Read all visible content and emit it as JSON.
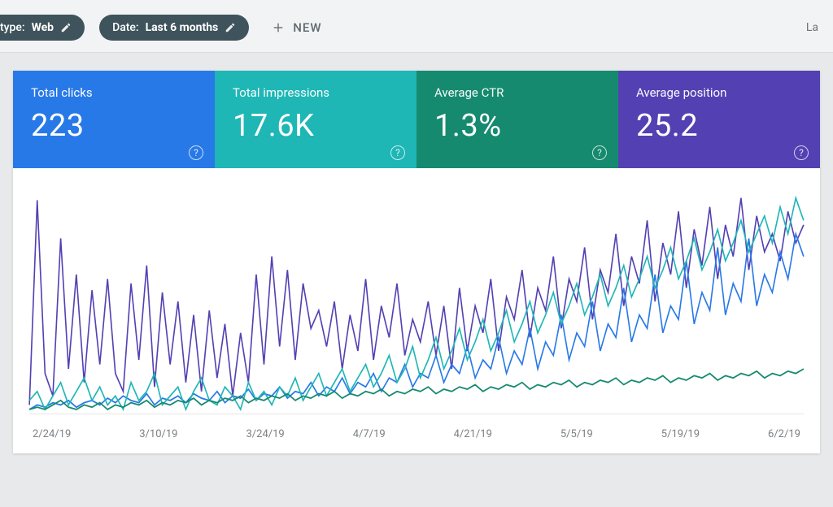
{
  "filters": {
    "type_chip": {
      "prefix": "type:",
      "value": "Web"
    },
    "date_chip": {
      "prefix": "Date:",
      "value": "Last 6 months"
    },
    "new_label": "NEW",
    "right_link": "La"
  },
  "chip_bg": "#3e535b",
  "tabs": [
    {
      "id": "clicks",
      "label": "Total clicks",
      "value": "223",
      "color": "#2879e8"
    },
    {
      "id": "impressions",
      "label": "Total impressions",
      "value": "17.6K",
      "color": "#1fb6b6"
    },
    {
      "id": "ctr",
      "label": "Average CTR",
      "value": "1.3%",
      "color": "#158a6f"
    },
    {
      "id": "position",
      "label": "Average position",
      "value": "25.2",
      "color": "#5341b3"
    }
  ],
  "chart": {
    "type": "line",
    "background": "#ffffff",
    "grid_color": "#e8e9ea",
    "label_color": "#7b8185",
    "label_fontsize": 13,
    "x_categories": [
      "2/24/19",
      "3/10/19",
      "3/24/19",
      "4/7/19",
      "4/21/19",
      "5/5/19",
      "5/19/19",
      "6/2/19"
    ],
    "ylim": [
      0,
      100
    ],
    "line_width": 1.6,
    "series": [
      {
        "id": "position",
        "color": "#5341b3",
        "points": [
          4,
          95,
          18,
          8,
          78,
          20,
          62,
          14,
          55,
          22,
          60,
          18,
          10,
          58,
          24,
          66,
          12,
          54,
          22,
          50,
          14,
          44,
          10,
          46,
          16,
          40,
          8,
          36,
          14,
          62,
          22,
          70,
          30,
          64,
          24,
          58,
          38,
          46,
          30,
          50,
          20,
          44,
          28,
          60,
          24,
          48,
          34,
          58,
          26,
          42,
          32,
          50,
          26,
          48,
          20,
          56,
          28,
          48,
          36,
          60,
          28,
          52,
          42,
          64,
          34,
          56,
          46,
          70,
          38,
          60,
          50,
          74,
          42,
          64,
          54,
          80,
          48,
          70,
          58,
          86,
          50,
          76,
          62,
          90,
          56,
          82,
          66,
          92,
          60,
          84,
          70,
          96,
          64,
          88,
          72,
          80,
          68,
          90,
          76,
          84
        ]
      },
      {
        "id": "clicks",
        "color": "#2879e8",
        "points": [
          2,
          4,
          3,
          5,
          4,
          6,
          3,
          5,
          6,
          4,
          7,
          5,
          8,
          6,
          5,
          9,
          4,
          7,
          6,
          8,
          5,
          9,
          7,
          6,
          10,
          5,
          8,
          7,
          11,
          6,
          9,
          8,
          12,
          7,
          10,
          9,
          14,
          8,
          12,
          10,
          16,
          9,
          14,
          12,
          18,
          10,
          16,
          14,
          22,
          12,
          18,
          16,
          26,
          14,
          22,
          18,
          30,
          16,
          24,
          20,
          34,
          18,
          28,
          22,
          38,
          20,
          32,
          26,
          44,
          24,
          36,
          30,
          50,
          28,
          40,
          34,
          56,
          32,
          44,
          38,
          62,
          36,
          48,
          42,
          68,
          40,
          54,
          46,
          74,
          44,
          58,
          50,
          78,
          48,
          62,
          54,
          72,
          60,
          80,
          70
        ]
      },
      {
        "id": "impressions",
        "color": "#1fb6b6",
        "points": [
          6,
          10,
          2,
          8,
          14,
          4,
          10,
          16,
          6,
          12,
          4,
          8,
          2,
          14,
          6,
          10,
          18,
          4,
          8,
          12,
          2,
          10,
          16,
          6,
          4,
          12,
          8,
          2,
          14,
          6,
          10,
          4,
          12,
          8,
          16,
          6,
          12,
          18,
          8,
          14,
          20,
          10,
          16,
          22,
          12,
          18,
          26,
          14,
          20,
          30,
          16,
          24,
          34,
          20,
          28,
          38,
          24,
          32,
          42,
          28,
          36,
          46,
          32,
          40,
          50,
          36,
          44,
          54,
          40,
          48,
          58,
          44,
          52,
          62,
          48,
          56,
          66,
          52,
          60,
          70,
          56,
          64,
          74,
          60,
          68,
          78,
          64,
          72,
          82,
          68,
          76,
          86,
          72,
          80,
          88,
          76,
          92,
          80,
          96,
          86
        ]
      },
      {
        "id": "ctr",
        "color": "#158a6f",
        "points": [
          2,
          3,
          2,
          4,
          6,
          3,
          2,
          4,
          3,
          5,
          2,
          4,
          3,
          5,
          4,
          6,
          3,
          5,
          4,
          6,
          5,
          7,
          4,
          6,
          5,
          7,
          6,
          8,
          5,
          7,
          6,
          8,
          7,
          9,
          6,
          8,
          7,
          9,
          8,
          10,
          7,
          9,
          8,
          10,
          9,
          11,
          8,
          10,
          9,
          11,
          10,
          12,
          9,
          11,
          10,
          12,
          11,
          13,
          10,
          12,
          11,
          13,
          12,
          14,
          11,
          13,
          12,
          14,
          13,
          15,
          12,
          14,
          13,
          15,
          14,
          16,
          13,
          15,
          14,
          16,
          15,
          17,
          14,
          16,
          15,
          17,
          16,
          18,
          15,
          17,
          16,
          18,
          17,
          19,
          16,
          18,
          17,
          19,
          18,
          20
        ]
      }
    ]
  }
}
